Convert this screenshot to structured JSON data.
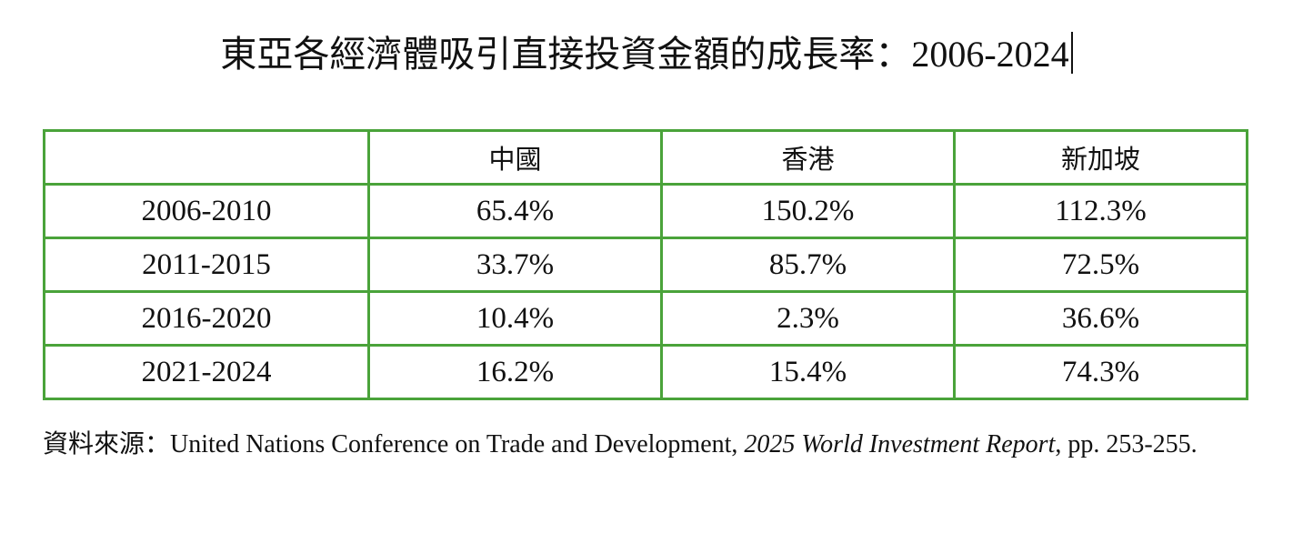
{
  "header": {
    "title": "東亞各經濟體吸引直接投資金額的成長率：2006-2024"
  },
  "table": {
    "columns": [
      "中國",
      "香港",
      "新加坡"
    ],
    "rows": [
      [
        "2006-2010",
        "65.4%",
        "150.2%",
        "112.3%"
      ],
      [
        "2011-2015",
        "33.7%",
        "85.7%",
        "72.5%"
      ],
      [
        "2016-2020",
        "10.4%",
        "2.3%",
        "36.6%"
      ],
      [
        "2021-2024",
        "16.2%",
        "15.4%",
        "74.3%"
      ]
    ]
  },
  "source": {
    "prefix": "資料來源：United Nations Conference on Trade and Development, ",
    "report": "2025 World Investment Report",
    "suffix": ", pp. 253-255."
  }
}
